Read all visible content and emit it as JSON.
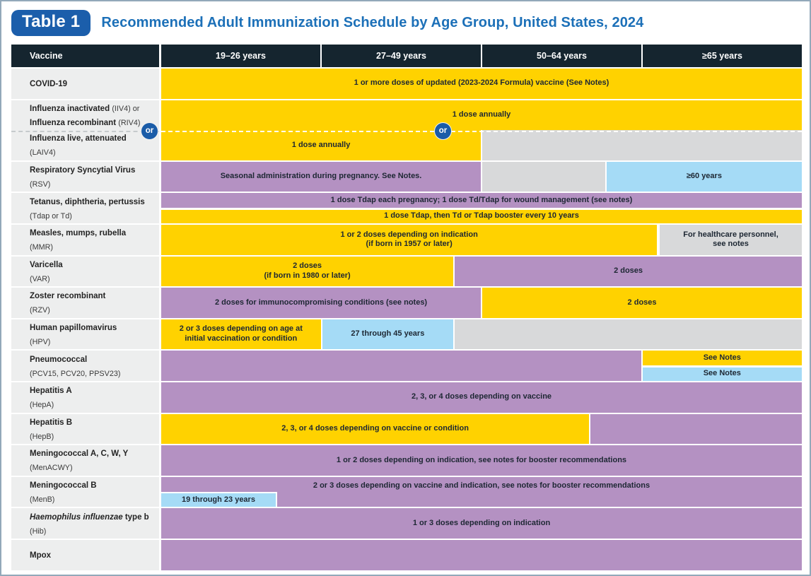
{
  "header": {
    "badge": "Table 1",
    "title": "Recommended Adult Immunization Schedule by Age Group, United States, 2024"
  },
  "columns": {
    "vaccine_label": "Vaccine",
    "age_groups": [
      "19–26 years",
      "27–49 years",
      "50–64 years",
      "≥65 years"
    ]
  },
  "or_label": "or",
  "palette": {
    "yellow": "#FFD200",
    "purple": "#B491C2",
    "blue": "#A5DBF6",
    "gray": "#D8D9DA",
    "header_navy": "#15252F",
    "label_bg": "#EDEEEE",
    "title_blue": "#1C70B8",
    "badge_blue": "#1B5EAB"
  },
  "rows": [
    {
      "label": [
        [
          {
            "t": "COVID-19",
            "s": "b"
          }
        ]
      ],
      "segments": [
        {
          "color": "yellow",
          "from": 0,
          "to": 100,
          "band": "full",
          "lines": [
            "1 or more doses of updated (2023-2024 Formula) vaccine (See Notes)"
          ]
        }
      ]
    },
    {
      "label": [
        [
          {
            "t": "Influenza inactivated ",
            "s": "b"
          },
          {
            "t": "(IIV4) or",
            "s": "r"
          }
        ],
        [
          {
            "t": "Influenza recombinant ",
            "s": "b"
          },
          {
            "t": "(RIV4)",
            "s": "r"
          }
        ]
      ],
      "joined_with_next": true,
      "or_divider_below": true,
      "segments": [
        {
          "color": "yellow",
          "from": 0,
          "to": 100,
          "band": "full",
          "lines": [
            "1 dose annually"
          ]
        }
      ]
    },
    {
      "label": [
        [
          {
            "t": "Influenza live, attenuated",
            "s": "b"
          }
        ],
        [
          {
            "t": "(LAIV4)",
            "s": "r"
          }
        ]
      ],
      "segments": [
        {
          "color": "yellow",
          "from": 0,
          "to": 49.9,
          "band": "full",
          "lines": [
            "1 dose annually"
          ]
        },
        {
          "color": "gray",
          "from": 49.9,
          "to": 100,
          "band": "full",
          "lines": []
        }
      ]
    },
    {
      "label": [
        [
          {
            "t": "Respiratory Syncytial Virus",
            "s": "b"
          }
        ],
        [
          {
            "t": "(RSV)",
            "s": "r"
          }
        ]
      ],
      "segments": [
        {
          "color": "purple",
          "from": 0,
          "to": 49.9,
          "band": "full",
          "lines": [
            "Seasonal administration during pregnancy. See Notes."
          ]
        },
        {
          "color": "gray",
          "from": 49.9,
          "to": 69.3,
          "band": "full",
          "lines": []
        },
        {
          "color": "blue",
          "from": 69.3,
          "to": 100,
          "band": "full",
          "lines": [
            "≥60 years"
          ]
        }
      ]
    },
    {
      "label": [
        [
          {
            "t": "Tetanus, diphtheria, pertussis",
            "s": "b"
          }
        ],
        [
          {
            "t": "(Tdap or Td)",
            "s": "r"
          }
        ]
      ],
      "segments": [
        {
          "color": "purple",
          "from": 0,
          "to": 100,
          "band": "top",
          "lines": [
            "1 dose Tdap each pregnancy; 1 dose Td/Tdap for wound management (see notes)"
          ]
        },
        {
          "color": "yellow",
          "from": 0,
          "to": 100,
          "band": "bottom",
          "lines": [
            "1 dose Tdap, then Td or Tdap booster every 10 years"
          ]
        }
      ]
    },
    {
      "label": [
        [
          {
            "t": "Measles, mumps, rubella",
            "s": "b"
          }
        ],
        [
          {
            "t": "(MMR)",
            "s": "r"
          }
        ]
      ],
      "segments": [
        {
          "color": "yellow",
          "from": 0,
          "to": 77.4,
          "band": "full",
          "lines": [
            "1 or 2 doses depending on indication",
            "(if born in 1957 or later)"
          ]
        },
        {
          "color": "gray",
          "from": 77.6,
          "to": 100,
          "band": "full",
          "lines": [
            "For healthcare personnel,",
            "see notes"
          ]
        }
      ]
    },
    {
      "label": [
        [
          {
            "t": "Varicella",
            "s": "b"
          }
        ],
        [
          {
            "t": "(VAR)",
            "s": "r"
          }
        ]
      ],
      "segments": [
        {
          "color": "yellow",
          "from": 0,
          "to": 45.6,
          "band": "full",
          "lines": [
            "2 doses",
            "(if born in 1980 or later)"
          ]
        },
        {
          "color": "purple",
          "from": 45.6,
          "to": 100,
          "band": "full",
          "lines": [
            "2 doses"
          ]
        }
      ]
    },
    {
      "label": [
        [
          {
            "t": "Zoster recombinant",
            "s": "b"
          }
        ],
        [
          {
            "t": "(RZV)",
            "s": "r"
          }
        ]
      ],
      "segments": [
        {
          "color": "purple",
          "from": 0,
          "to": 49.9,
          "band": "full",
          "lines": [
            "2 doses for immunocompromising conditions (see notes)"
          ]
        },
        {
          "color": "yellow",
          "from": 49.9,
          "to": 100,
          "band": "full",
          "lines": [
            "2 doses"
          ]
        }
      ]
    },
    {
      "label": [
        [
          {
            "t": "Human papillomavirus",
            "s": "b"
          }
        ],
        [
          {
            "t": "(HPV)",
            "s": "r"
          }
        ]
      ],
      "segments": [
        {
          "color": "yellow",
          "from": 0,
          "to": 24.9,
          "band": "full",
          "lines": [
            "2 or 3 doses depending on age at",
            "initial vaccination or condition"
          ]
        },
        {
          "color": "blue",
          "from": 24.9,
          "to": 45.6,
          "band": "full",
          "lines": [
            "27 through 45 years"
          ]
        },
        {
          "color": "gray",
          "from": 45.6,
          "to": 100,
          "band": "full",
          "lines": []
        }
      ]
    },
    {
      "label": [
        [
          {
            "t": "Pneumococcal",
            "s": "b"
          }
        ],
        [
          {
            "t": "(PCV15, PCV20, PPSV23)",
            "s": "r"
          }
        ]
      ],
      "segments": [
        {
          "color": "purple",
          "from": 0,
          "to": 74.9,
          "band": "full",
          "lines": []
        },
        {
          "color": "yellow",
          "from": 74.9,
          "to": 100,
          "band": "top",
          "lines": [
            "See Notes"
          ]
        },
        {
          "color": "blue",
          "from": 74.9,
          "to": 100,
          "band": "bottom",
          "lines": [
            "See Notes"
          ]
        }
      ]
    },
    {
      "label": [
        [
          {
            "t": "Hepatitis A",
            "s": "b"
          }
        ],
        [
          {
            "t": "(HepA)",
            "s": "r"
          }
        ]
      ],
      "segments": [
        {
          "color": "purple",
          "from": 0,
          "to": 100,
          "band": "full",
          "lines": [
            "2, 3, or 4 doses depending on vaccine"
          ]
        }
      ]
    },
    {
      "label": [
        [
          {
            "t": "Hepatitis B",
            "s": "b"
          }
        ],
        [
          {
            "t": "(HepB)",
            "s": "r"
          }
        ]
      ],
      "segments": [
        {
          "color": "yellow",
          "from": 0,
          "to": 66.8,
          "band": "full",
          "lines": [
            "2, 3, or 4 doses depending on vaccine or condition"
          ]
        },
        {
          "color": "purple",
          "from": 66.8,
          "to": 100,
          "band": "full",
          "lines": []
        }
      ]
    },
    {
      "label": [
        [
          {
            "t": "Meningococcal A, C, W, Y",
            "s": "b"
          }
        ],
        [
          {
            "t": "(MenACWY)",
            "s": "r"
          }
        ]
      ],
      "segments": [
        {
          "color": "purple",
          "from": 0,
          "to": 100,
          "band": "full",
          "lines": [
            "1 or 2 doses depending on indication, see notes for booster recommendations"
          ]
        }
      ]
    },
    {
      "label": [
        [
          {
            "t": "Meningococcal B",
            "s": "b"
          }
        ],
        [
          {
            "t": "(MenB)",
            "s": "r"
          }
        ]
      ],
      "segments": [
        {
          "color": "purple",
          "from": 0,
          "to": 100,
          "band": "full",
          "text_valign": "top",
          "lines": [
            "2 or 3 doses depending on vaccine and indication, see notes for booster recommendations"
          ]
        },
        {
          "color": "blue",
          "from": 0,
          "to": 18.1,
          "band": "bottom",
          "overlay": true,
          "lines": [
            "19 through 23 years"
          ]
        }
      ]
    },
    {
      "label": [
        [
          {
            "t": "Haemophilus influenzae",
            "s": "bi"
          },
          {
            "t": " type b",
            "s": "b"
          }
        ],
        [
          {
            "t": "(Hib)",
            "s": "r"
          }
        ]
      ],
      "segments": [
        {
          "color": "purple",
          "from": 0,
          "to": 100,
          "band": "full",
          "lines": [
            "1 or 3 doses depending on indication"
          ]
        }
      ]
    },
    {
      "label": [
        [
          {
            "t": "Mpox",
            "s": "b"
          }
        ]
      ],
      "segments": [
        {
          "color": "purple",
          "from": 0,
          "to": 100,
          "band": "full",
          "lines": []
        }
      ]
    }
  ]
}
